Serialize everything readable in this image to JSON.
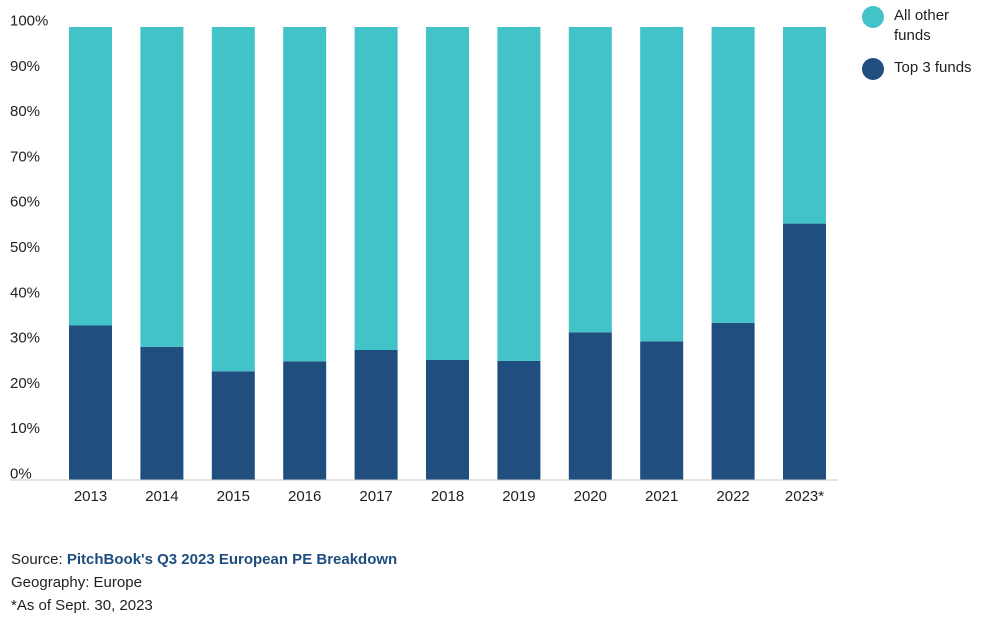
{
  "chart_data": {
    "type": "bar",
    "stacked": true,
    "percent_scale": true,
    "categories": [
      "2013",
      "2014",
      "2015",
      "2016",
      "2017",
      "2018",
      "2019",
      "2020",
      "2021",
      "2022",
      "2023*"
    ],
    "series": [
      {
        "name": "Top 3 funds",
        "color": "#1f4e7f",
        "values": [
          34.1,
          29.4,
          24.0,
          26.2,
          28.7,
          26.5,
          26.3,
          32.6,
          30.6,
          34.7,
          56.6
        ]
      },
      {
        "name": "All other funds",
        "color": "#41c3c8",
        "values": [
          65.9,
          70.6,
          76.0,
          73.8,
          71.3,
          73.5,
          73.7,
          67.4,
          69.4,
          65.3,
          43.4
        ]
      }
    ],
    "ylim": [
      0,
      100
    ],
    "yticks": [
      "0%",
      "10%",
      "20%",
      "30%",
      "40%",
      "50%",
      "60%",
      "70%",
      "80%",
      "90%",
      "100%"
    ],
    "legend_position": "top-right",
    "grid": false
  },
  "legend": {
    "items": [
      {
        "label": "All other funds",
        "color": "#41c3c8"
      },
      {
        "label": "Top 3 funds",
        "color": "#1f4e7f"
      }
    ]
  },
  "footer": {
    "source_prefix": "Source: ",
    "source_link": "PitchBook's Q3 2023 European PE Breakdown",
    "geography": "Geography: Europe",
    "note": "*As of Sept. 30, 2023"
  }
}
